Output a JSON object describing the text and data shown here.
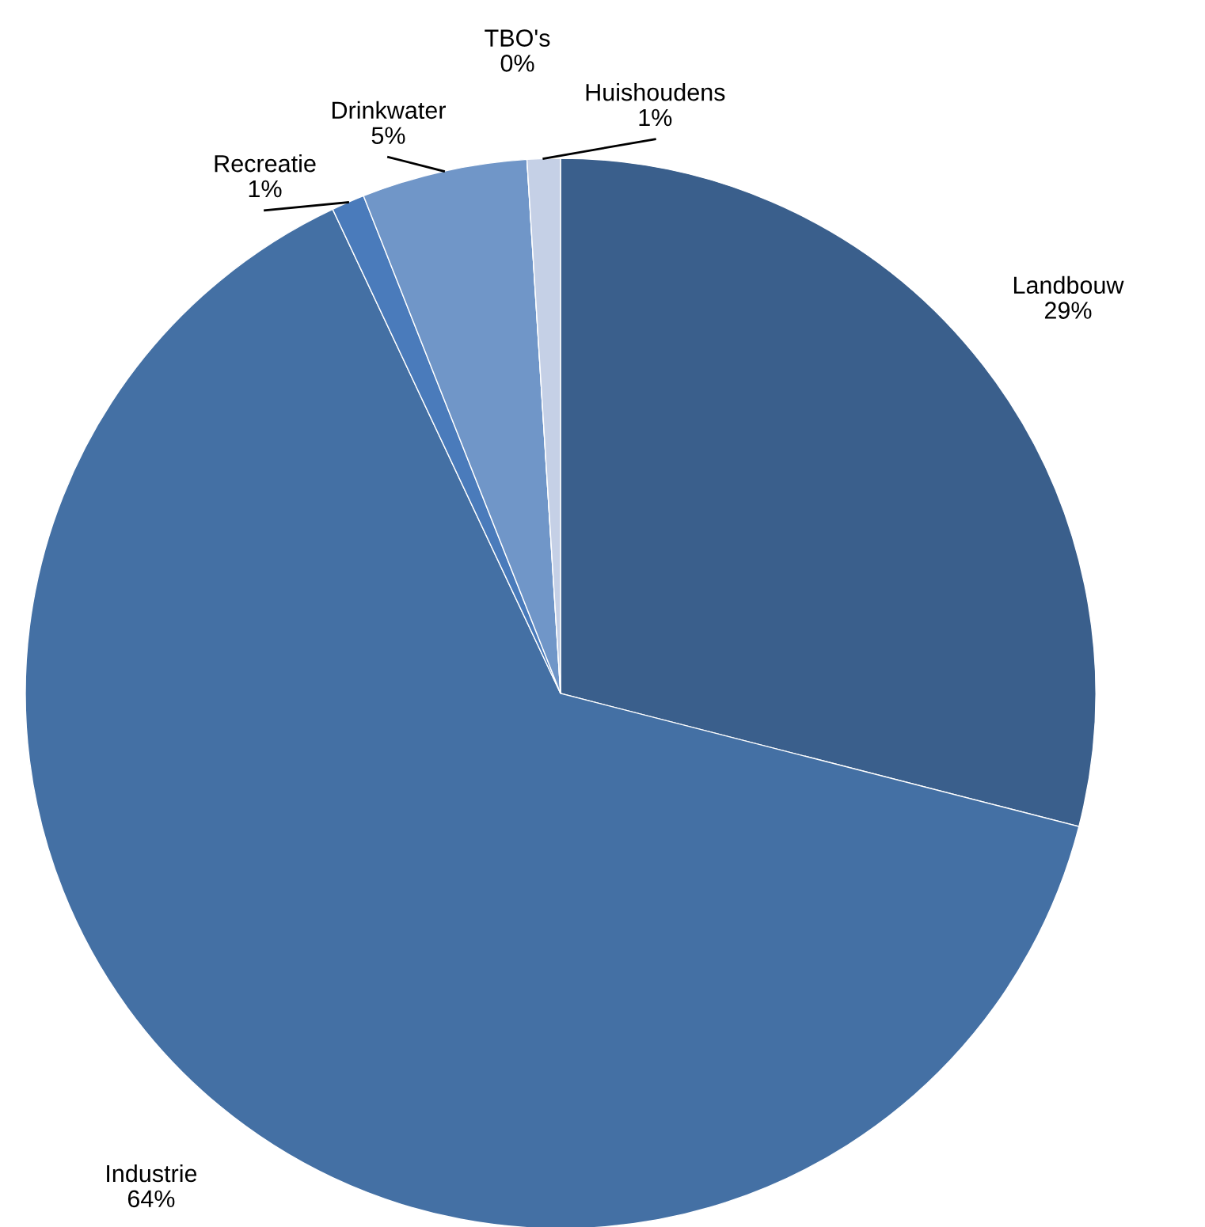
{
  "chart_data": {
    "type": "pie",
    "categories": [
      "Landbouw",
      "Industrie",
      "Recreatie",
      "Drinkwater",
      "TBO's",
      "Huishoudens"
    ],
    "values": [
      29,
      64,
      1,
      5,
      0,
      1
    ],
    "value_labels": [
      "29%",
      "64%",
      "1%",
      "5%",
      "0%",
      "1%"
    ],
    "colors": [
      "#3a5f8c",
      "#4470a4",
      "#4a7bbb",
      "#7096c8",
      "#a4b8dc",
      "#c5d0e6"
    ]
  }
}
